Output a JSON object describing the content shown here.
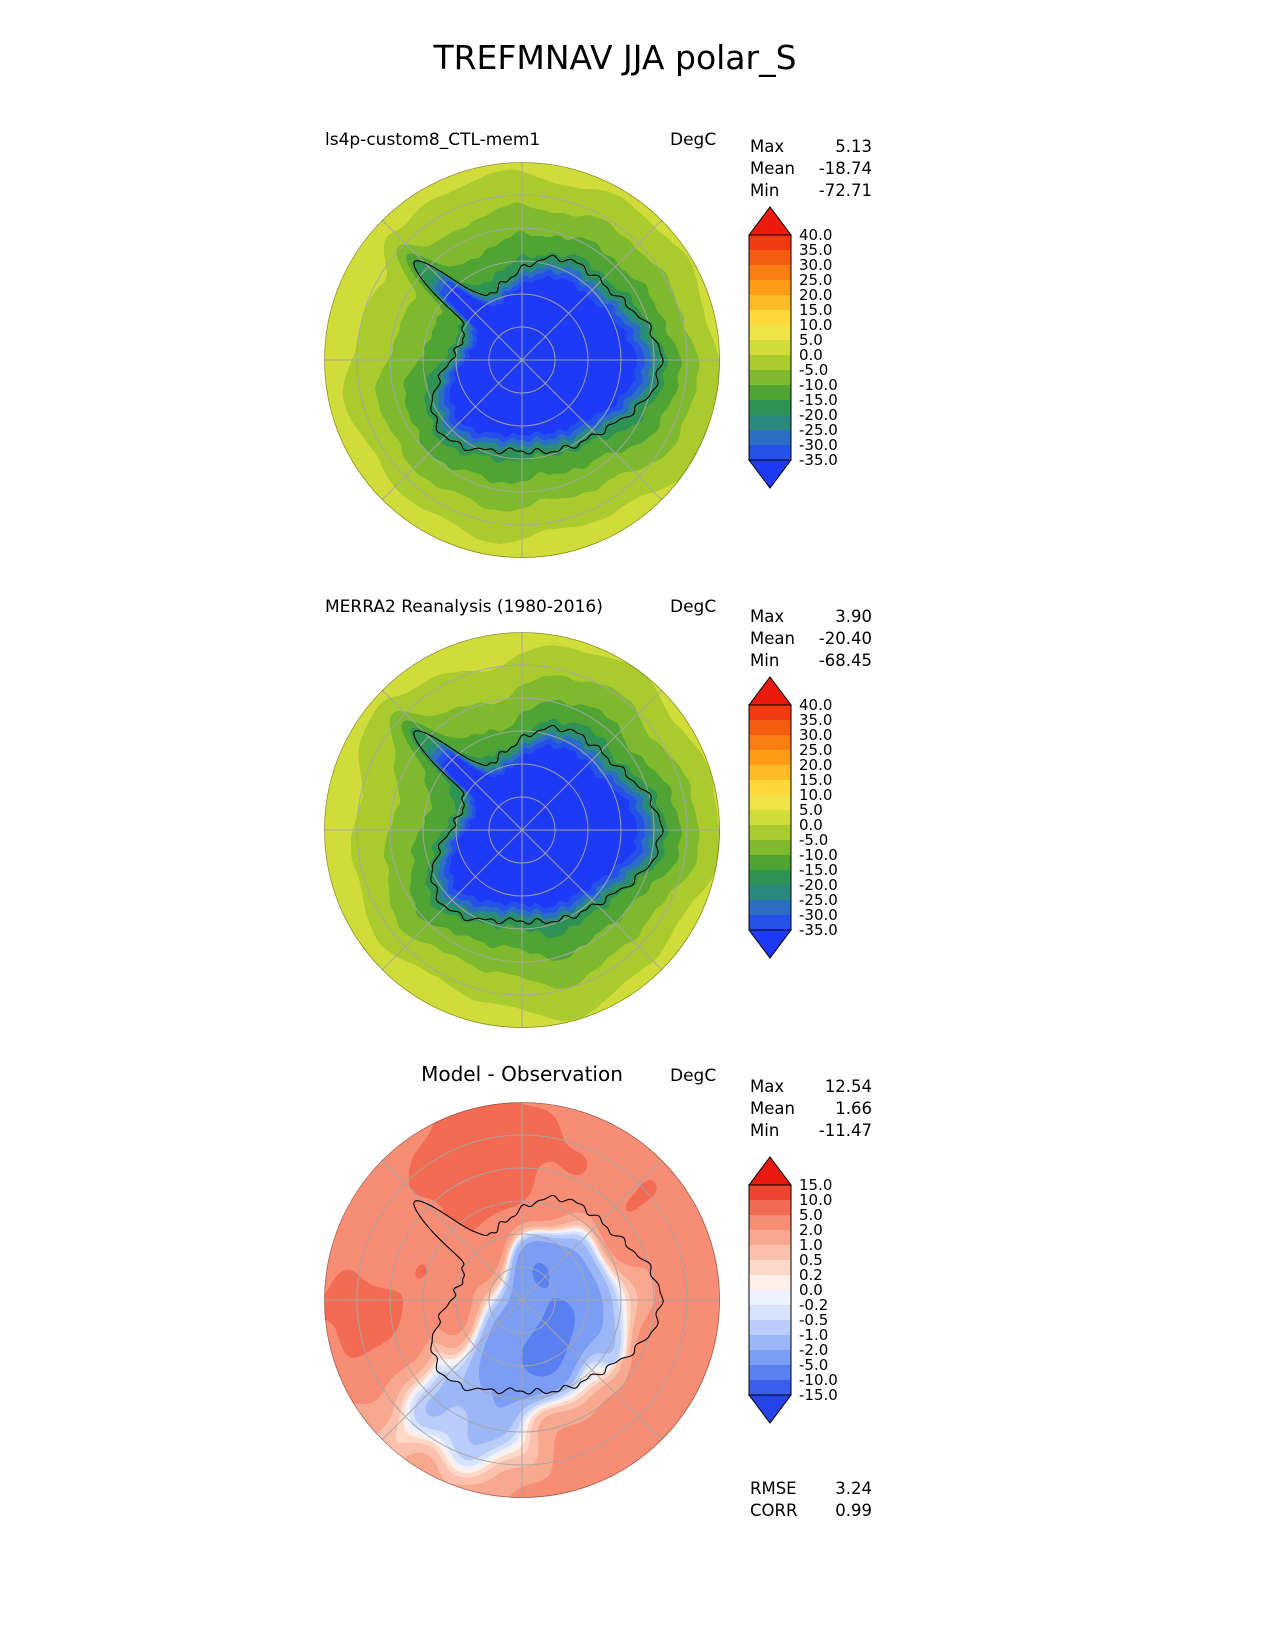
{
  "title": "TREFMNAV JJA polar_S",
  "panels": [
    {
      "label": "ls4p-custom8_CTL-mem1",
      "units": "DegC",
      "stats": {
        "max_label": "Max",
        "max": "5.13",
        "mean_label": "Mean",
        "mean": "-18.74",
        "min_label": "Min",
        "min": "-72.71"
      }
    },
    {
      "label": "MERRA2 Reanalysis (1980-2016)",
      "units": "DegC",
      "stats": {
        "max_label": "Max",
        "max": "3.90",
        "mean_label": "Mean",
        "mean": "-20.40",
        "min_label": "Min",
        "min": "-68.45"
      }
    },
    {
      "label": "Model - Observation",
      "units": "DegC",
      "stats": {
        "max_label": "Max",
        "max": "12.54",
        "mean_label": "Mean",
        "mean": "1.66",
        "min_label": "Min",
        "min": "-11.47"
      },
      "metrics": {
        "rmse_label": "RMSE",
        "rmse": "3.24",
        "corr_label": "CORR",
        "corr": "0.99"
      }
    }
  ],
  "chart_data": {
    "type": "heatmap",
    "title": "TREFMNAV JJA polar_S",
    "variable": "TREFMNAV",
    "season": "JJA",
    "region": "polar_S",
    "projection": "south-polar-stereographic",
    "graticule": {
      "latitude_circles": 5,
      "longitude_spokes_deg": 45
    },
    "panels": [
      {
        "name": "ls4p-custom8_CTL-mem1",
        "units": "DegC",
        "field": "temp",
        "seed": 2.1,
        "stats": {
          "max": 5.13,
          "mean": -18.74,
          "min": -72.71
        },
        "colorbar": {
          "levels": [
            40,
            35,
            30,
            25,
            20,
            15,
            10,
            5,
            0,
            -5,
            -10,
            -15,
            -20,
            -25,
            -30,
            -35
          ],
          "labels": [
            "40.0",
            "35.0",
            "30.0",
            "25.0",
            "20.0",
            "15.0",
            "10.0",
            "5.0",
            "0.0",
            "-5.0",
            "-10.0",
            "-15.0",
            "-20.0",
            "-25.0",
            "-30.0",
            "-35.0"
          ],
          "colors": [
            "#ed1b0d",
            "#f13a10",
            "#f65c11",
            "#fa7d12",
            "#fd9d16",
            "#ffbb27",
            "#ffd83a",
            "#f0e347",
            "#cfdc39",
            "#aacb2d",
            "#7fb92e",
            "#4fa433",
            "#2f9356",
            "#2b8a7e",
            "#2b6ec4",
            "#2452e8",
            "#1e3af6"
          ]
        }
      },
      {
        "name": "MERRA2 Reanalysis (1980-2016)",
        "units": "DegC",
        "field": "temp",
        "seed": 4.4,
        "stats": {
          "max": 3.9,
          "mean": -20.4,
          "min": -68.45
        },
        "colorbar": {
          "levels": [
            40,
            35,
            30,
            25,
            20,
            15,
            10,
            5,
            0,
            -5,
            -10,
            -15,
            -20,
            -25,
            -30,
            -35
          ],
          "labels": [
            "40.0",
            "35.0",
            "30.0",
            "25.0",
            "20.0",
            "15.0",
            "10.0",
            "5.0",
            "0.0",
            "-5.0",
            "-10.0",
            "-15.0",
            "-20.0",
            "-25.0",
            "-30.0",
            "-35.0"
          ],
          "colors": [
            "#ed1b0d",
            "#f13a10",
            "#f65c11",
            "#fa7d12",
            "#fd9d16",
            "#ffbb27",
            "#ffd83a",
            "#f0e347",
            "#cfdc39",
            "#aacb2d",
            "#7fb92e",
            "#4fa433",
            "#2f9356",
            "#2b8a7e",
            "#2b6ec4",
            "#2452e8",
            "#1e3af6"
          ]
        }
      },
      {
        "name": "Model - Observation",
        "units": "DegC",
        "field": "diff",
        "stats": {
          "max": 12.54,
          "mean": 1.66,
          "min": -11.47
        },
        "metrics": {
          "rmse": 3.24,
          "corr": 0.99
        },
        "colorbar": {
          "levels": [
            15,
            10,
            5,
            2,
            1,
            0.5,
            0.2,
            0,
            -0.2,
            -0.5,
            -1,
            -2,
            -5,
            -10,
            -15
          ],
          "labels": [
            "15.0",
            "10.0",
            "5.0",
            "2.0",
            "1.0",
            "0.5",
            "0.2",
            "0.0",
            "-0.2",
            "-0.5",
            "-1.0",
            "-2.0",
            "-5.0",
            "-10.0",
            "-15.0"
          ],
          "colors": [
            "#ea1c10",
            "#ee4430",
            "#f26b52",
            "#f68d74",
            "#f9a890",
            "#fbc1ac",
            "#fdd9c9",
            "#feefe8",
            "#edf2fe",
            "#d7e2fc",
            "#bbcdfa",
            "#9cb7f7",
            "#7b9df4",
            "#597ff0",
            "#3b5eec",
            "#2643e8"
          ]
        }
      }
    ]
  }
}
